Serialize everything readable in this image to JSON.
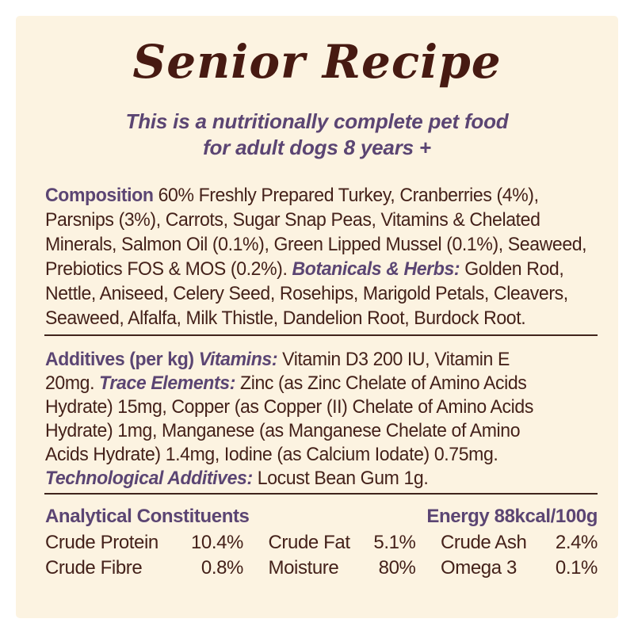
{
  "colors": {
    "panel_background": "#fcf3e1",
    "title_maroon": "#471a12",
    "body_maroon": "#44211a",
    "accent_purple": "#5b4573",
    "divider_brown": "#40241c"
  },
  "header": {
    "title": "Senior Recipe",
    "subtitle_line1": "This is a nutritionally complete pet food",
    "subtitle_line2": "for adult dogs 8 years +"
  },
  "composition": {
    "heading": "Composition",
    "line1_rest": "60% Freshly Prepared Turkey, Cranberries (4%),",
    "line2": "Parsnips (3%), Carrots, Sugar Snap Peas, Vitamins & Chelated",
    "line3": "Minerals, Salmon Oil (0.1%), Green Lipped Mussel (0.1%), Seaweed,",
    "line4_before": "Prebiotics FOS & MOS (0.2%).",
    "line4_label": "Botanicals & Herbs:",
    "line4_after": "Golden Rod,",
    "line5": "Nettle, Aniseed, Celery Seed, Rosehips, Marigold Petals, Cleavers,",
    "line6": "Seaweed, Alfalfa, Milk Thistle, Dandelion Root, Burdock Root."
  },
  "additives": {
    "heading": "Additives (per kg)",
    "vitamins_label": "Vitamins:",
    "line1_rest": "Vitamin D3 200 IU, Vitamin E",
    "line2_before": "20mg.",
    "trace_label": "Trace Elements:",
    "line2_after": "Zinc (as Zinc Chelate of Amino Acids",
    "line3": "Hydrate) 15mg, Copper (as Copper (II) Chelate of Amino Acids",
    "line4": "Hydrate) 1mg, Manganese (as Manganese Chelate of Amino",
    "line5": "Acids Hydrate) 1.4mg, Iodine (as Calcium Iodate) 0.75mg.",
    "tech_label": "Technological Additives:",
    "line6_rest": "Locust Bean Gum 1g."
  },
  "analytical": {
    "heading": "Analytical Constituents",
    "energy": "Energy 88kcal/100g",
    "rows": [
      {
        "col1_label": "Crude Protein",
        "col1_value": "10.4%",
        "col2_label": "Crude Fat",
        "col2_value": "5.1%",
        "col3_label": "Crude Ash",
        "col3_value": "2.4%"
      },
      {
        "col1_label": "Crude Fibre",
        "col1_value": "0.8%",
        "col2_label": "Moisture",
        "col2_value": "80%",
        "col3_label": "Omega 3",
        "col3_value": "0.1%"
      }
    ]
  }
}
